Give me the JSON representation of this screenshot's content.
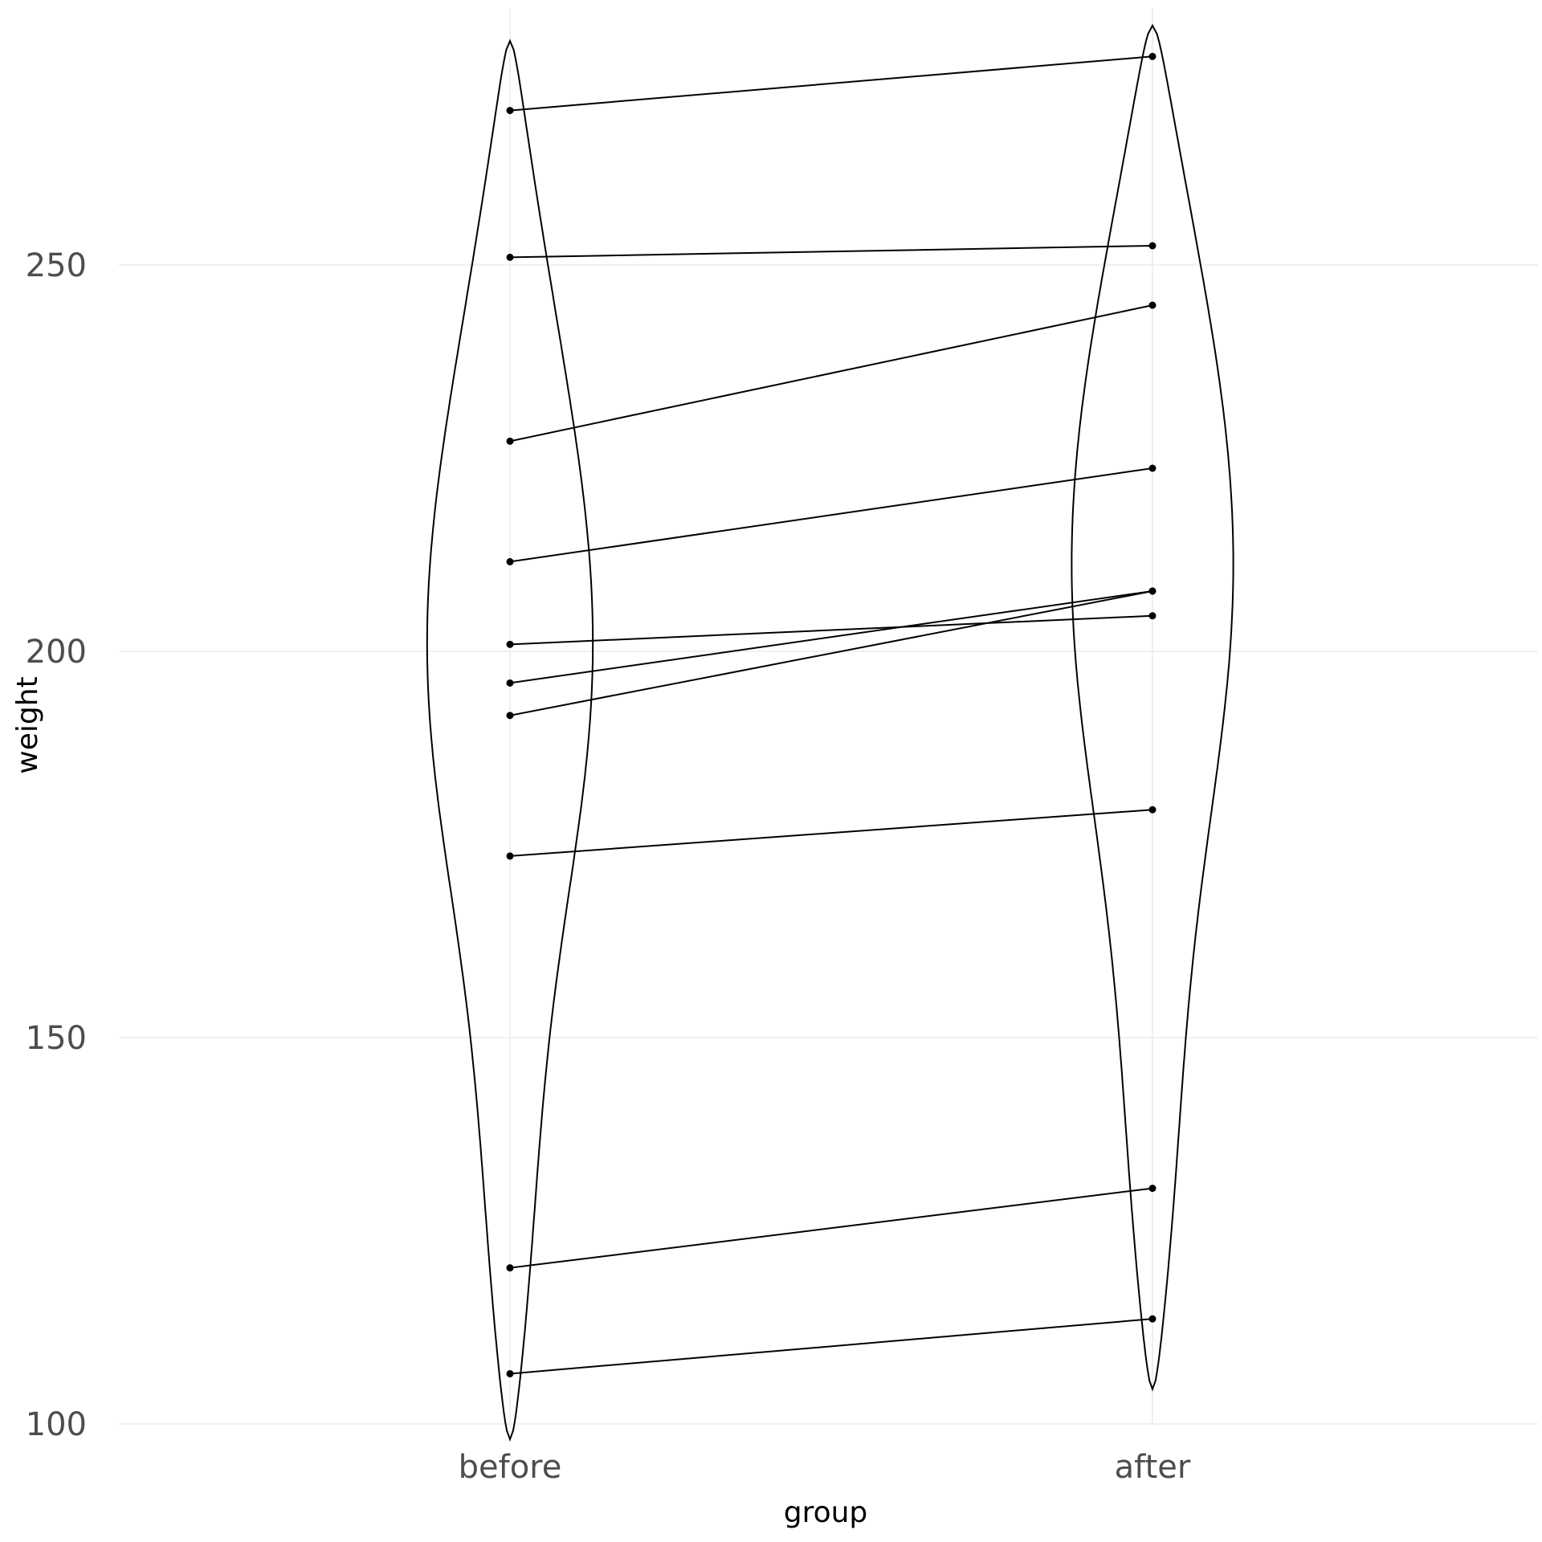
{
  "chart_data": {
    "type": "violin-paired",
    "xlabel": "group",
    "ylabel": "weight",
    "categories": [
      "before",
      "after"
    ],
    "yticks": [
      100,
      150,
      200,
      250
    ],
    "ylim": [
      98,
      281
    ],
    "grid": true,
    "pairs": [
      {
        "before": 270.0,
        "after": 277.0
      },
      {
        "before": 251.0,
        "after": 252.5
      },
      {
        "before": 227.2,
        "after": 244.8
      },
      {
        "before": 211.6,
        "after": 223.7
      },
      {
        "before": 200.9,
        "after": 204.6
      },
      {
        "before": 195.9,
        "after": 207.8
      },
      {
        "before": 191.7,
        "after": 207.8
      },
      {
        "before": 173.5,
        "after": 179.5
      },
      {
        "before": 120.2,
        "after": 130.5
      },
      {
        "before": 106.5,
        "after": 113.6
      }
    ],
    "violins": [
      {
        "group": "before",
        "y_min": 98,
        "y_max": 279,
        "widest_at": 192
      },
      {
        "group": "after",
        "y_min": 104.5,
        "y_max": 281,
        "widest_at": 203
      }
    ]
  }
}
